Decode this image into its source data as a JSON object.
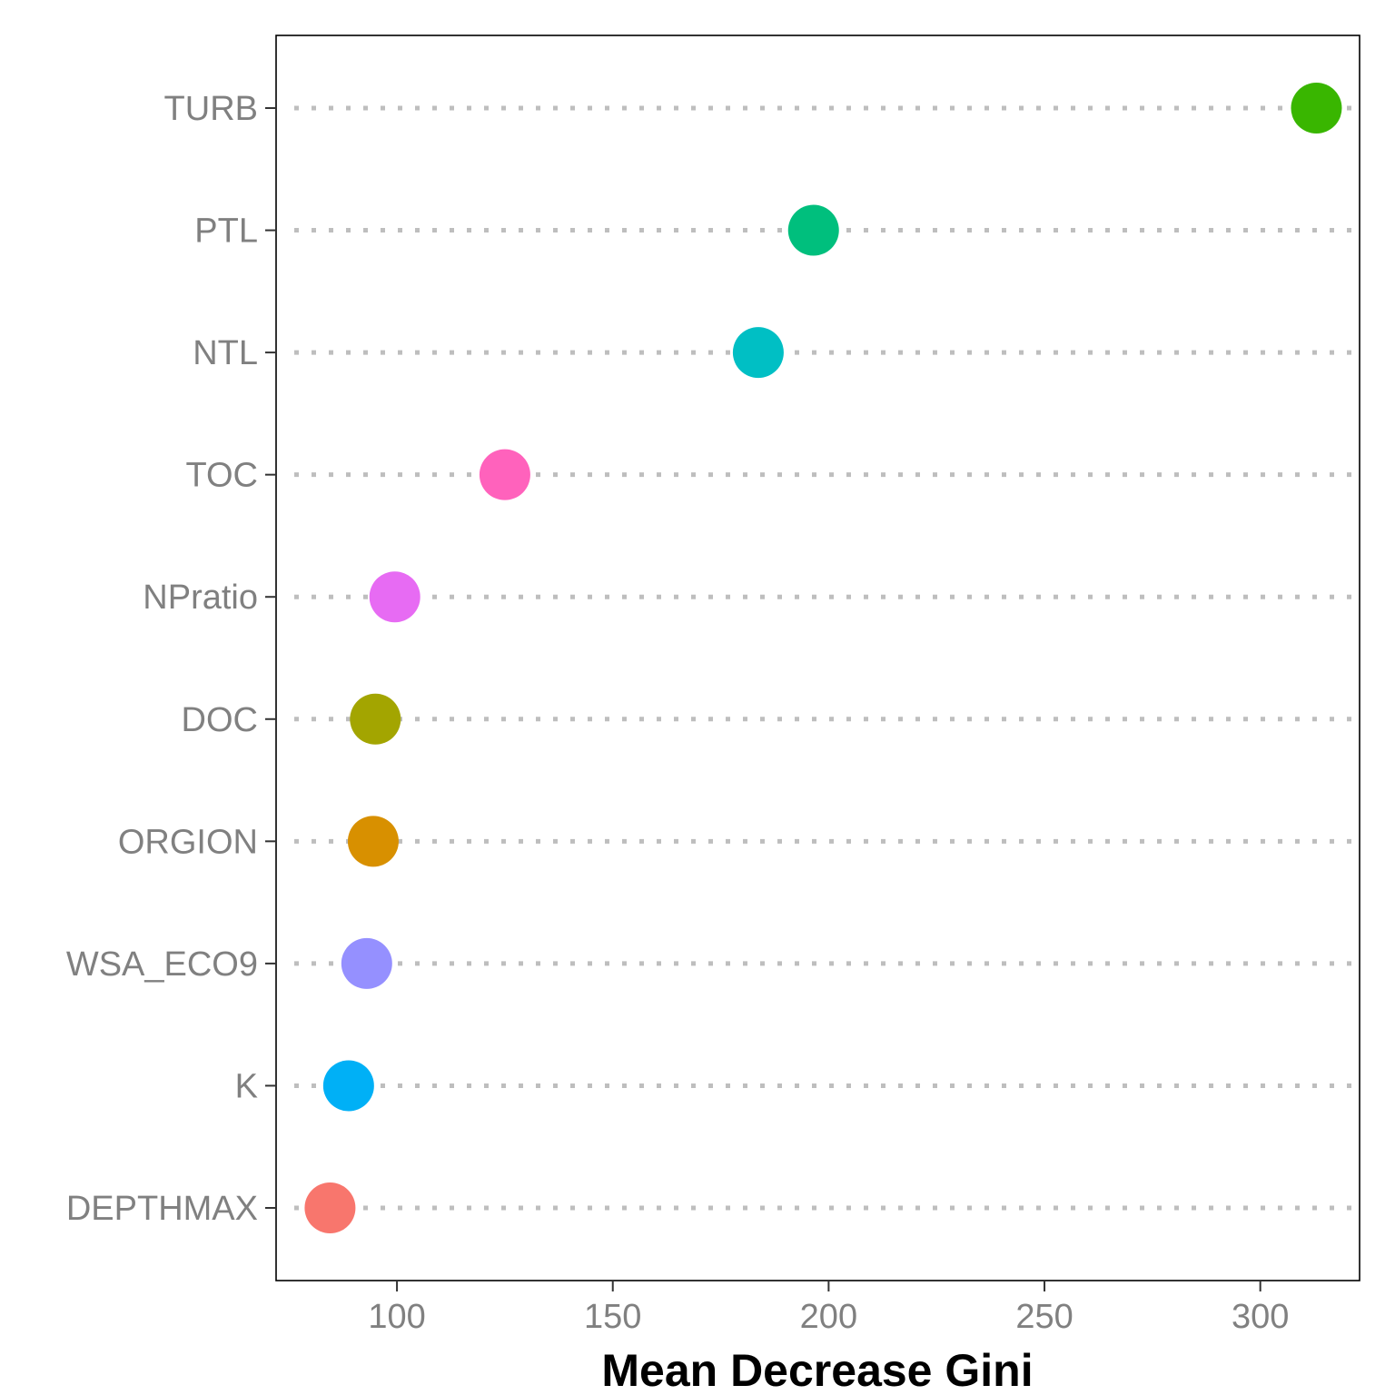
{
  "chart_data": {
    "type": "scatter",
    "xlabel": "Mean Decrease Gini",
    "ylabel": "",
    "title": "",
    "xlim": [
      72,
      323
    ],
    "xticks": [
      100,
      150,
      200,
      250,
      300
    ],
    "grid": "dotted horizontal guides per category",
    "legend": "none",
    "categories": [
      "DEPTHMAX",
      "K",
      "WSA_ECO9",
      "ORGION",
      "DOC",
      "NPratio",
      "TOC",
      "NTL",
      "PTL",
      "TURB"
    ],
    "values": [
      84.5,
      88.8,
      93,
      94.5,
      95,
      99.5,
      125,
      183.7,
      196.5,
      313
    ],
    "colors": [
      "#F8766D",
      "#00B0F6",
      "#9590FF",
      "#D89000",
      "#A3A500",
      "#E76BF3",
      "#FF62BC",
      "#00BFC4",
      "#00BF7D",
      "#39B600"
    ]
  }
}
